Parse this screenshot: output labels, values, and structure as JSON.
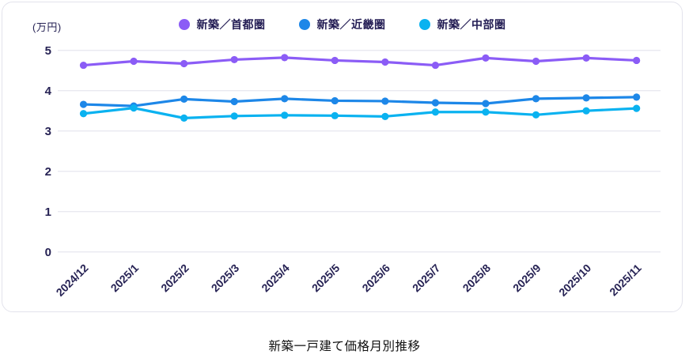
{
  "unit_label": "(万円)",
  "bottom_title": "新築一戸建て価格月別推移",
  "chart_data": {
    "type": "line",
    "title": "新築一戸建て価格月別推移",
    "ylabel": "(万円)",
    "ylim": [
      0,
      5
    ],
    "yticks": [
      0,
      1,
      2,
      3,
      4,
      5
    ],
    "grid": true,
    "legend_position": "top",
    "categories": [
      "2024/12",
      "2025/1",
      "2025/2",
      "2025/3",
      "2025/4",
      "2025/5",
      "2025/6",
      "2025/7",
      "2025/8",
      "2025/9",
      "2025/10",
      "2025/11"
    ],
    "series": [
      {
        "name": "新築／首都圏",
        "color": "#8b5cf6",
        "values": [
          4.63,
          4.73,
          4.67,
          4.77,
          4.82,
          4.75,
          4.71,
          4.63,
          4.81,
          4.73,
          4.81,
          4.75
        ]
      },
      {
        "name": "新築／近畿圏",
        "color": "#1d87e8",
        "values": [
          3.66,
          3.62,
          3.79,
          3.73,
          3.8,
          3.75,
          3.74,
          3.7,
          3.68,
          3.8,
          3.82,
          3.84
        ]
      },
      {
        "name": "新築／中部圏",
        "color": "#0ab2f0",
        "values": [
          3.43,
          3.57,
          3.32,
          3.37,
          3.39,
          3.38,
          3.36,
          3.47,
          3.47,
          3.4,
          3.5,
          3.56
        ]
      }
    ]
  },
  "colors": {
    "axis_text": "#262254",
    "gridline": "#e9e9f0",
    "card_border": "#e3e3ec",
    "title_text": "#111111"
  }
}
